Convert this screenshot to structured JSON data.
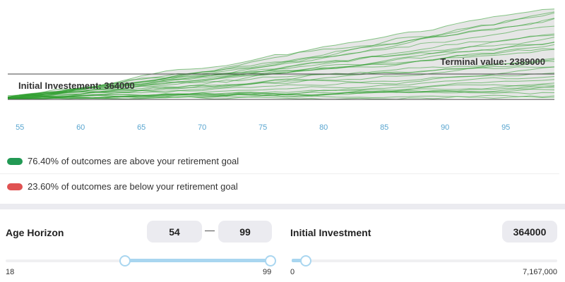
{
  "chart_data": {
    "type": "line",
    "x_ticks": [
      "55",
      "60",
      "65",
      "70",
      "75",
      "80",
      "85",
      "90",
      "95"
    ],
    "xlim": [
      54,
      99
    ],
    "annotations": {
      "initial": "Initial Investement: 364000",
      "terminal": "Terminal value: 2389000"
    },
    "colors": {
      "paths": "#2a9d2a",
      "band": "#e6e6e6",
      "below": "#d9534f"
    }
  },
  "legend": [
    {
      "text": "76.40% of outcomes are above your retirement goal",
      "color": "#229954"
    },
    {
      "text": "23.60% of outcomes are below your retirement goal",
      "color": "#e05252"
    }
  ],
  "controls": {
    "age": {
      "label": "Age Horizon",
      "from": "54",
      "to": "99",
      "dash": "—",
      "min": "18",
      "max": "99",
      "from_value": 54,
      "to_value": 99
    },
    "investment": {
      "label": "Initial Investment",
      "value": "364000",
      "min": "0",
      "max": "7,167,000",
      "value_num": 364000,
      "max_num": 7167000
    }
  }
}
